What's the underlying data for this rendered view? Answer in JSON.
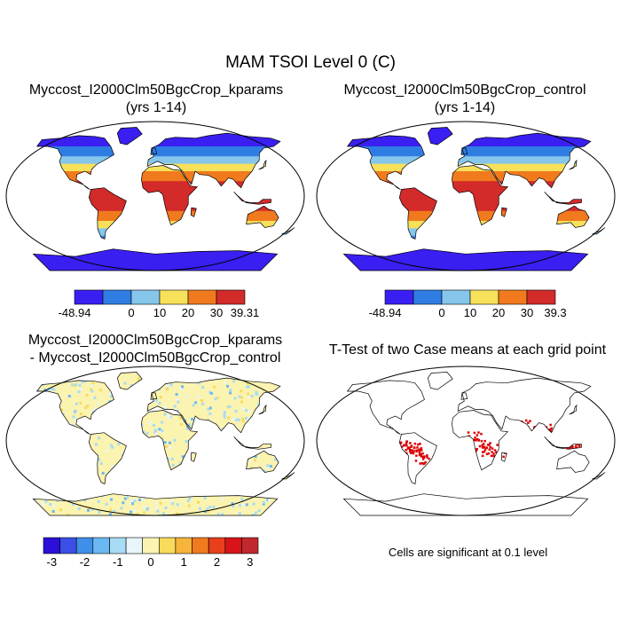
{
  "figure": {
    "title": "MAM TSOI Level 0 (C)"
  },
  "panels": [
    {
      "title_line1": "Myccost_I2000Clm50BgcCrop_kparams",
      "title_line2": "(yrs 1-14)",
      "colorbar": {
        "colors": [
          "#3a1ff2",
          "#2f7de3",
          "#86c6ea",
          "#f7e15a",
          "#f07a1d",
          "#d32a2a"
        ],
        "labels": [
          "-48.94",
          "0",
          "10",
          "20",
          "30",
          "39.31"
        ]
      }
    },
    {
      "title_line1": "Myccost_I2000Clm50BgcCrop_control",
      "title_line2": "(yrs 1-14)",
      "colorbar": {
        "colors": [
          "#3a1ff2",
          "#2f7de3",
          "#86c6ea",
          "#f7e15a",
          "#f07a1d",
          "#d32a2a"
        ],
        "labels": [
          "-48.94",
          "0",
          "10",
          "20",
          "30",
          "39.3"
        ]
      }
    },
    {
      "title_line1": "Myccost_I2000Clm50BgcCrop_kparams",
      "title_line2": "- Myccost_I2000Clm50BgcCrop_control",
      "colorbar": {
        "colors": [
          "#2a10d8",
          "#3b4fe6",
          "#3f8fe8",
          "#6bb8f2",
          "#a8dcf5",
          "#e8f6fb",
          "#fbf3b0",
          "#f8db5a",
          "#f6b43a",
          "#f07b1f",
          "#e8401a",
          "#d7141a",
          "#c0282e"
        ],
        "labels": [
          "-3",
          "-2",
          "-1",
          "0",
          "1",
          "2",
          "3"
        ]
      }
    },
    {
      "title_line1": "T-Test of two Case means at each grid point",
      "note": "Cells are significant at 0.1 level"
    }
  ]
}
